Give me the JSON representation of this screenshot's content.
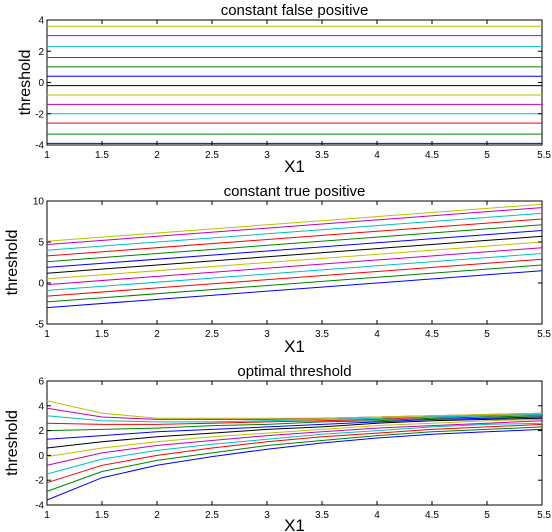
{
  "colors": [
    "#0000ff",
    "#008000",
    "#ff0000",
    "#00bfbf",
    "#bf00bf",
    "#bfbf00",
    "#000000"
  ],
  "chart_data": [
    {
      "type": "line",
      "title": "constant false positive",
      "xlabel": "X1",
      "ylabel": "threshold",
      "xlim": [
        1,
        5.5
      ],
      "ylim": [
        -4,
        4
      ],
      "xticks": [
        1,
        1.5,
        2,
        2.5,
        3,
        3.5,
        4,
        4.5,
        5,
        5.5
      ],
      "xtick_labels": [
        "1",
        "1.5",
        "2",
        "2.5",
        "3",
        "3.5",
        "4",
        "4.5",
        "5",
        "5.5"
      ],
      "yticks": [
        -4,
        -2,
        0,
        2,
        4
      ],
      "ytick_labels": [
        "-4",
        "-2",
        "0",
        "2",
        "4"
      ],
      "grid": false,
      "series": [
        {
          "x": [
            1,
            5.5
          ],
          "y": [
            -3.9,
            -3.9
          ]
        },
        {
          "x": [
            1,
            5.5
          ],
          "y": [
            -3.3,
            -3.3
          ]
        },
        {
          "x": [
            1,
            5.5
          ],
          "y": [
            -2.6,
            -2.6
          ]
        },
        {
          "x": [
            1,
            5.5
          ],
          "y": [
            -2.0,
            -2.0
          ]
        },
        {
          "x": [
            1,
            5.5
          ],
          "y": [
            -1.4,
            -1.4
          ]
        },
        {
          "x": [
            1,
            5.5
          ],
          "y": [
            -0.8,
            -0.8
          ]
        },
        {
          "x": [
            1,
            5.5
          ],
          "y": [
            -0.2,
            -0.2
          ]
        },
        {
          "x": [
            1,
            5.5
          ],
          "y": [
            0.4,
            0.4
          ]
        },
        {
          "x": [
            1,
            5.5
          ],
          "y": [
            1.0,
            1.0
          ]
        },
        {
          "x": [
            1,
            5.5
          ],
          "y": [
            1.6,
            1.6
          ]
        },
        {
          "x": [
            1,
            5.5
          ],
          "y": [
            2.3,
            2.3
          ]
        },
        {
          "x": [
            1,
            5.5
          ],
          "y": [
            3.0,
            3.0
          ]
        },
        {
          "x": [
            1,
            5.5
          ],
          "y": [
            3.6,
            3.6
          ]
        }
      ]
    },
    {
      "type": "line",
      "title": "constant true positive",
      "xlabel": "X1",
      "ylabel": "threshold",
      "xlim": [
        1,
        5.5
      ],
      "ylim": [
        -5,
        10
      ],
      "xticks": [
        1,
        1.5,
        2,
        2.5,
        3,
        3.5,
        4,
        4.5,
        5,
        5.5
      ],
      "xtick_labels": [
        "1",
        "1.5",
        "2",
        "2.5",
        "3",
        "3.5",
        "4",
        "4.5",
        "5",
        "5.5"
      ],
      "yticks": [
        -5,
        0,
        5,
        10
      ],
      "ytick_labels": [
        "-5",
        "0",
        "5",
        "10"
      ],
      "grid": false,
      "series": [
        {
          "x": [
            1,
            5.5
          ],
          "y": [
            -3.0,
            1.5
          ]
        },
        {
          "x": [
            1,
            5.5
          ],
          "y": [
            -2.3,
            2.2
          ]
        },
        {
          "x": [
            1,
            5.5
          ],
          "y": [
            -1.6,
            2.9
          ]
        },
        {
          "x": [
            1,
            5.5
          ],
          "y": [
            -0.9,
            3.6
          ]
        },
        {
          "x": [
            1,
            5.5
          ],
          "y": [
            -0.2,
            4.3
          ]
        },
        {
          "x": [
            1,
            5.5
          ],
          "y": [
            0.5,
            5.0
          ]
        },
        {
          "x": [
            1,
            5.5
          ],
          "y": [
            1.2,
            5.7
          ]
        },
        {
          "x": [
            1,
            5.5
          ],
          "y": [
            1.9,
            6.4
          ]
        },
        {
          "x": [
            1,
            5.5
          ],
          "y": [
            2.6,
            7.1
          ]
        },
        {
          "x": [
            1,
            5.5
          ],
          "y": [
            3.3,
            7.8
          ]
        },
        {
          "x": [
            1,
            5.5
          ],
          "y": [
            4.0,
            8.5
          ]
        },
        {
          "x": [
            1,
            5.5
          ],
          "y": [
            4.7,
            9.2
          ]
        },
        {
          "x": [
            1,
            5.5
          ],
          "y": [
            5.1,
            9.6
          ]
        }
      ]
    },
    {
      "type": "line",
      "title": "optimal threshold",
      "xlabel": "X1",
      "ylabel": "threshold",
      "xlim": [
        1,
        5.5
      ],
      "ylim": [
        -4,
        6
      ],
      "xticks": [
        1,
        1.5,
        2,
        2.5,
        3,
        3.5,
        4,
        4.5,
        5,
        5.5
      ],
      "xtick_labels": [
        "1",
        "1.5",
        "2",
        "2.5",
        "3",
        "3.5",
        "4",
        "4.5",
        "5",
        "5.5"
      ],
      "yticks": [
        -4,
        -2,
        0,
        2,
        4,
        6
      ],
      "ytick_labels": [
        "-4",
        "-2",
        "0",
        "2",
        "4",
        "6"
      ],
      "grid": false,
      "series": [
        {
          "x": [
            1,
            1.5,
            2,
            2.5,
            3,
            3.5,
            4,
            4.5,
            5,
            5.5
          ],
          "y": [
            -3.6,
            -1.8,
            -0.8,
            -0.1,
            0.5,
            1.0,
            1.4,
            1.7,
            1.9,
            2.1
          ]
        },
        {
          "x": [
            1,
            1.5,
            2,
            2.5,
            3,
            3.5,
            4,
            4.5,
            5,
            5.5
          ],
          "y": [
            -2.9,
            -1.3,
            -0.4,
            0.2,
            0.8,
            1.2,
            1.6,
            1.9,
            2.1,
            2.3
          ]
        },
        {
          "x": [
            1,
            1.5,
            2,
            2.5,
            3,
            3.5,
            4,
            4.5,
            5,
            5.5
          ],
          "y": [
            -2.2,
            -0.8,
            0.0,
            0.6,
            1.1,
            1.5,
            1.8,
            2.1,
            2.3,
            2.5
          ]
        },
        {
          "x": [
            1,
            1.5,
            2,
            2.5,
            3,
            3.5,
            4,
            4.5,
            5,
            5.5
          ],
          "y": [
            -1.5,
            -0.3,
            0.4,
            0.9,
            1.3,
            1.7,
            2.0,
            2.3,
            2.5,
            2.6
          ]
        },
        {
          "x": [
            1,
            1.5,
            2,
            2.5,
            3,
            3.5,
            4,
            4.5,
            5,
            5.5
          ],
          "y": [
            -0.8,
            0.2,
            0.8,
            1.2,
            1.6,
            1.9,
            2.2,
            2.4,
            2.6,
            2.8
          ]
        },
        {
          "x": [
            1,
            1.5,
            2,
            2.5,
            3,
            3.5,
            4,
            4.5,
            5,
            5.5
          ],
          "y": [
            -0.1,
            0.6,
            1.1,
            1.5,
            1.8,
            2.1,
            2.4,
            2.6,
            2.8,
            2.9
          ]
        },
        {
          "x": [
            1,
            1.5,
            2,
            2.5,
            3,
            3.5,
            4,
            4.5,
            5,
            5.5
          ],
          "y": [
            0.6,
            1.1,
            1.5,
            1.8,
            2.1,
            2.3,
            2.6,
            2.8,
            2.9,
            3.0
          ]
        },
        {
          "x": [
            1,
            1.5,
            2,
            2.5,
            3,
            3.5,
            4,
            4.5,
            5,
            5.5
          ],
          "y": [
            1.3,
            1.6,
            1.9,
            2.1,
            2.3,
            2.5,
            2.7,
            2.9,
            3.0,
            3.1
          ]
        },
        {
          "x": [
            1,
            1.5,
            2,
            2.5,
            3,
            3.5,
            4,
            4.5,
            5,
            5.5
          ],
          "y": [
            2.0,
            2.1,
            2.2,
            2.4,
            2.5,
            2.7,
            2.8,
            3.0,
            3.1,
            3.2
          ]
        },
        {
          "x": [
            1,
            1.5,
            2,
            2.5,
            3,
            3.5,
            4,
            4.5,
            5,
            5.5
          ],
          "y": [
            2.6,
            2.5,
            2.5,
            2.6,
            2.7,
            2.8,
            2.9,
            3.1,
            3.2,
            3.3
          ]
        },
        {
          "x": [
            1,
            1.5,
            2,
            2.5,
            3,
            3.5,
            4,
            4.5,
            5,
            5.5
          ],
          "y": [
            3.2,
            2.8,
            2.7,
            2.7,
            2.8,
            2.9,
            3.0,
            3.1,
            3.2,
            3.3
          ]
        },
        {
          "x": [
            1,
            1.5,
            2,
            2.5,
            3,
            3.5,
            4,
            4.5,
            5,
            5.5
          ],
          "y": [
            3.8,
            3.1,
            2.9,
            2.9,
            2.9,
            3.0,
            3.1,
            3.2,
            3.3,
            3.4
          ]
        },
        {
          "x": [
            1,
            1.5,
            2,
            2.5,
            3,
            3.5,
            4,
            4.5,
            5,
            5.5
          ],
          "y": [
            4.4,
            3.4,
            3.0,
            3.0,
            3.0,
            3.0,
            3.1,
            3.2,
            3.3,
            3.4
          ]
        }
      ]
    }
  ]
}
